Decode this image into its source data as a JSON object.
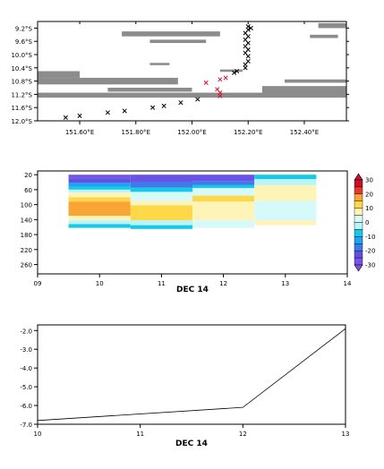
{
  "chart_data": [
    {
      "type": "scatter",
      "x_ticks": [
        "151.60°E",
        "151.80°E",
        "152.00°E",
        "152.20°E",
        "152.40°E"
      ],
      "x_tick_values": [
        151.6,
        151.8,
        152.0,
        152.2,
        152.4
      ],
      "y_ticks": [
        "9.2°S",
        "9.6°S",
        "10.0°S",
        "10.4°S",
        "10.8°S",
        "11.2°S",
        "11.6°S",
        "12.0°S"
      ],
      "y_tick_values": [
        9.2,
        9.6,
        10.0,
        10.4,
        10.8,
        11.2,
        11.6,
        12.0
      ],
      "xlim": [
        151.45,
        152.55
      ],
      "ylim": [
        9.0,
        12.0
      ],
      "land_bands": [
        {
          "x": [
            151.45,
            151.6
          ],
          "y": [
            10.5,
            10.7
          ]
        },
        {
          "x": [
            151.45,
            151.95
          ],
          "y": [
            10.7,
            10.9
          ]
        },
        {
          "x": [
            151.45,
            152.55
          ],
          "y": [
            11.15,
            11.3
          ]
        },
        {
          "x": [
            151.7,
            152.0
          ],
          "y": [
            11.0,
            11.12
          ]
        },
        {
          "x": [
            151.75,
            152.1
          ],
          "y": [
            9.3,
            9.45
          ]
        },
        {
          "x": [
            151.85,
            152.05
          ],
          "y": [
            9.55,
            9.65
          ]
        },
        {
          "x": [
            151.85,
            151.92
          ],
          "y": [
            10.25,
            10.32
          ]
        },
        {
          "x": [
            152.25,
            152.55
          ],
          "y": [
            10.95,
            11.25
          ]
        },
        {
          "x": [
            152.33,
            152.55
          ],
          "y": [
            10.75,
            10.85
          ]
        },
        {
          "x": [
            152.45,
            152.55
          ],
          "y": [
            9.05,
            9.2
          ]
        },
        {
          "x": [
            152.42,
            152.52
          ],
          "y": [
            9.4,
            9.5
          ]
        },
        {
          "x": [
            152.1,
            152.18
          ],
          "y": [
            10.45,
            10.52
          ]
        }
      ],
      "track_black": [
        {
          "x": 151.55,
          "y": 11.9
        },
        {
          "x": 151.6,
          "y": 11.85
        },
        {
          "x": 151.7,
          "y": 11.75
        },
        {
          "x": 151.76,
          "y": 11.7
        },
        {
          "x": 151.86,
          "y": 11.6
        },
        {
          "x": 151.9,
          "y": 11.55
        },
        {
          "x": 151.96,
          "y": 11.45
        },
        {
          "x": 152.02,
          "y": 11.35
        },
        {
          "x": 152.15,
          "y": 10.55
        },
        {
          "x": 152.16,
          "y": 10.5
        },
        {
          "x": 152.19,
          "y": 10.4
        },
        {
          "x": 152.19,
          "y": 10.3
        },
        {
          "x": 152.2,
          "y": 10.2
        },
        {
          "x": 152.2,
          "y": 10.05
        },
        {
          "x": 152.19,
          "y": 9.95
        },
        {
          "x": 152.2,
          "y": 9.85
        },
        {
          "x": 152.19,
          "y": 9.75
        },
        {
          "x": 152.2,
          "y": 9.65
        },
        {
          "x": 152.19,
          "y": 9.55
        },
        {
          "x": 152.2,
          "y": 9.45
        },
        {
          "x": 152.19,
          "y": 9.35
        },
        {
          "x": 152.2,
          "y": 9.25
        },
        {
          "x": 152.21,
          "y": 9.2
        },
        {
          "x": 152.2,
          "y": 9.15
        }
      ],
      "track_red": [
        {
          "x": 152.05,
          "y": 10.85
        },
        {
          "x": 152.09,
          "y": 11.05
        },
        {
          "x": 152.1,
          "y": 11.15
        },
        {
          "x": 152.1,
          "y": 11.25
        },
        {
          "x": 152.1,
          "y": 10.75
        },
        {
          "x": 152.12,
          "y": 10.7
        }
      ],
      "colors": {
        "land": "#8c8c8c",
        "track": "#000000",
        "highlight": "#e0102a"
      }
    },
    {
      "type": "heatmap",
      "x_ticks": [
        "09",
        "10",
        "11",
        "12",
        "13",
        "14"
      ],
      "x_tick_values": [
        9,
        10,
        11,
        12,
        13,
        14
      ],
      "xlabel": "DEC 14",
      "y_ticks": [
        "20",
        "60",
        "100",
        "140",
        "180",
        "220",
        "260"
      ],
      "y_tick_values": [
        20,
        60,
        100,
        140,
        180,
        220,
        260
      ],
      "xlim": [
        9,
        14
      ],
      "ylim": [
        10,
        285
      ],
      "cells": [
        {
          "x0": 9.5,
          "x1": 10.5,
          "y0": 20,
          "y1": 30,
          "color": "#7b52e8"
        },
        {
          "x0": 9.5,
          "x1": 10.5,
          "y0": 30,
          "y1": 42,
          "color": "#5e52e0"
        },
        {
          "x0": 9.5,
          "x1": 10.5,
          "y0": 42,
          "y1": 52,
          "color": "#1fa3f0"
        },
        {
          "x0": 9.5,
          "x1": 10.5,
          "y0": 52,
          "y1": 60,
          "color": "#18c8e8"
        },
        {
          "x0": 9.5,
          "x1": 10.5,
          "y0": 60,
          "y1": 68,
          "color": "#b9f5f7"
        },
        {
          "x0": 9.5,
          "x1": 10.5,
          "y0": 68,
          "y1": 80,
          "color": "#fff4b8"
        },
        {
          "x0": 9.5,
          "x1": 10.5,
          "y0": 80,
          "y1": 92,
          "color": "#ffd84a"
        },
        {
          "x0": 9.5,
          "x1": 10.5,
          "y0": 92,
          "y1": 130,
          "color": "#f8a535"
        },
        {
          "x0": 9.5,
          "x1": 10.5,
          "y0": 130,
          "y1": 142,
          "color": "#fff4b8"
        },
        {
          "x0": 9.5,
          "x1": 10.5,
          "y0": 142,
          "y1": 152,
          "color": "#b9f5f7"
        },
        {
          "x0": 9.5,
          "x1": 10.5,
          "y0": 152,
          "y1": 162,
          "color": "#18c8e8"
        },
        {
          "x0": 10.5,
          "x1": 11.5,
          "y0": 20,
          "y1": 40,
          "color": "#6a52e6"
        },
        {
          "x0": 10.5,
          "x1": 11.5,
          "y0": 40,
          "y1": 55,
          "color": "#3a7de8"
        },
        {
          "x0": 10.5,
          "x1": 11.5,
          "y0": 55,
          "y1": 66,
          "color": "#18c8e8"
        },
        {
          "x0": 10.5,
          "x1": 11.5,
          "y0": 66,
          "y1": 90,
          "color": "#d6fafa"
        },
        {
          "x0": 10.5,
          "x1": 11.5,
          "y0": 90,
          "y1": 102,
          "color": "#fff4b8"
        },
        {
          "x0": 10.5,
          "x1": 11.5,
          "y0": 102,
          "y1": 142,
          "color": "#ffd84a"
        },
        {
          "x0": 10.5,
          "x1": 11.5,
          "y0": 142,
          "y1": 155,
          "color": "#b9f5f7"
        },
        {
          "x0": 10.5,
          "x1": 11.5,
          "y0": 155,
          "y1": 165,
          "color": "#18c8e8"
        },
        {
          "x0": 11.5,
          "x1": 12.5,
          "y0": 20,
          "y1": 38,
          "color": "#6a52e6"
        },
        {
          "x0": 11.5,
          "x1": 12.5,
          "y0": 38,
          "y1": 48,
          "color": "#3a7de8"
        },
        {
          "x0": 11.5,
          "x1": 12.5,
          "y0": 48,
          "y1": 56,
          "color": "#18c8e8"
        },
        {
          "x0": 11.5,
          "x1": 12.5,
          "y0": 56,
          "y1": 76,
          "color": "#d6fafa"
        },
        {
          "x0": 11.5,
          "x1": 12.5,
          "y0": 76,
          "y1": 92,
          "color": "#ffd84a"
        },
        {
          "x0": 11.5,
          "x1": 12.5,
          "y0": 92,
          "y1": 142,
          "color": "#fff4b8"
        },
        {
          "x0": 11.5,
          "x1": 12.5,
          "y0": 142,
          "y1": 162,
          "color": "#d6fafa"
        },
        {
          "x0": 12.5,
          "x1": 13.5,
          "y0": 20,
          "y1": 32,
          "color": "#18c8e8"
        },
        {
          "x0": 12.5,
          "x1": 13.5,
          "y0": 32,
          "y1": 48,
          "color": "#b9f5f7"
        },
        {
          "x0": 12.5,
          "x1": 13.5,
          "y0": 48,
          "y1": 90,
          "color": "#fff4b8"
        },
        {
          "x0": 12.5,
          "x1": 13.5,
          "y0": 90,
          "y1": 142,
          "color": "#d6fafa"
        },
        {
          "x0": 12.5,
          "x1": 13.5,
          "y0": 142,
          "y1": 155,
          "color": "#fff4b8"
        }
      ],
      "colorbar": {
        "labels": [
          "30",
          "20",
          "10",
          "0",
          "-10",
          "-20",
          "-30"
        ],
        "colors": [
          "#c8102a",
          "#e8382e",
          "#f8a535",
          "#ffd84a",
          "#fff4b8",
          "#d6fafa",
          "#b9f5f7",
          "#18c8e8",
          "#1fa3f0",
          "#3a7de8",
          "#5e52e0",
          "#7b52e8"
        ]
      }
    },
    {
      "type": "line",
      "x": [
        10,
        12,
        13
      ],
      "y": [
        -6.8,
        -6.1,
        -1.9
      ],
      "x_ticks": [
        "10",
        "11",
        "12",
        "13"
      ],
      "x_tick_values": [
        10,
        11,
        12,
        13
      ],
      "xlabel": "DEC 14",
      "y_ticks": [
        "-2.0",
        "-3.0",
        "-4.0",
        "-5.0",
        "-6.0",
        "-7.0"
      ],
      "y_tick_values": [
        -2.0,
        -3.0,
        -4.0,
        -5.0,
        -6.0,
        -7.0
      ],
      "xlim": [
        10,
        13
      ],
      "ylim": [
        -7.0,
        -1.7
      ]
    }
  ]
}
